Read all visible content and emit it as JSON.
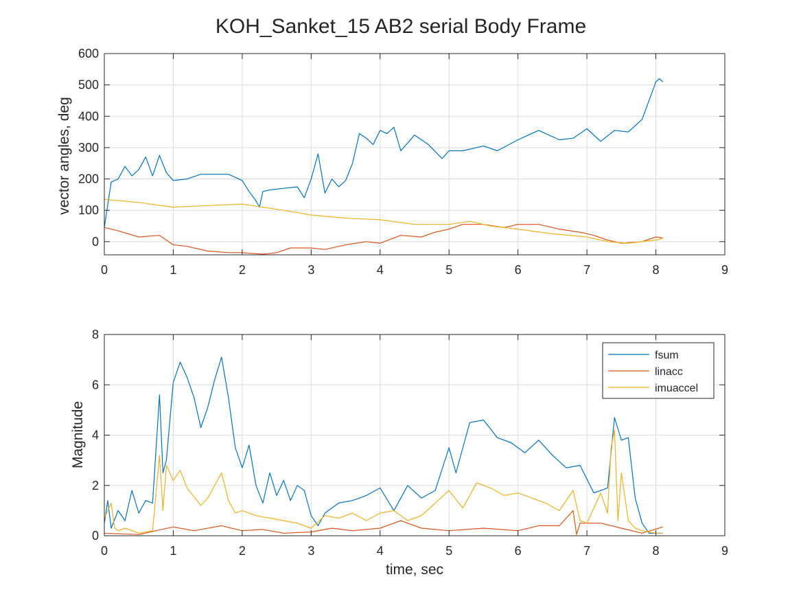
{
  "title": "KOH_Sanket_15    AB2    serial  Body Frame",
  "chart_data": [
    {
      "type": "line",
      "title": "KOH_Sanket_15    AB2    serial  Body Frame",
      "xlabel": "",
      "ylabel": "vector angles, deg",
      "xlim": [
        0,
        9
      ],
      "ylim": [
        -42,
        600
      ],
      "xticks": [
        0,
        1,
        2,
        3,
        4,
        5,
        6,
        7,
        8,
        9
      ],
      "yticks": [
        0,
        100,
        200,
        300,
        400,
        500,
        600
      ],
      "grid": true,
      "series": [
        {
          "color": "#0072BD",
          "x": [
            0,
            0.1,
            0.2,
            0.3,
            0.4,
            0.5,
            0.6,
            0.7,
            0.8,
            0.9,
            1.0,
            1.2,
            1.4,
            1.6,
            1.8,
            2.0,
            2.1,
            2.2,
            2.25,
            2.3,
            2.4,
            2.6,
            2.8,
            2.9,
            3.0,
            3.1,
            3.2,
            3.3,
            3.4,
            3.5,
            3.6,
            3.7,
            3.8,
            3.9,
            4.0,
            4.1,
            4.2,
            4.3,
            4.5,
            4.7,
            4.9,
            5.0,
            5.2,
            5.5,
            5.7,
            6.0,
            6.3,
            6.6,
            6.8,
            7.0,
            7.2,
            7.4,
            7.6,
            7.8,
            8.0,
            8.05,
            8.1
          ],
          "y": [
            45,
            190,
            200,
            240,
            210,
            230,
            270,
            210,
            275,
            220,
            195,
            200,
            215,
            215,
            215,
            195,
            160,
            130,
            110,
            160,
            165,
            170,
            175,
            140,
            200,
            280,
            155,
            200,
            175,
            195,
            250,
            345,
            330,
            310,
            355,
            345,
            365,
            290,
            340,
            310,
            265,
            290,
            290,
            305,
            290,
            325,
            355,
            325,
            330,
            360,
            320,
            355,
            350,
            390,
            510,
            520,
            510
          ]
        },
        {
          "color": "#D95319",
          "x": [
            0,
            0.2,
            0.5,
            0.8,
            1.0,
            1.2,
            1.5,
            1.8,
            2.0,
            2.3,
            2.5,
            2.7,
            3.0,
            3.2,
            3.5,
            3.8,
            4.0,
            4.3,
            4.6,
            4.8,
            5.0,
            5.2,
            5.5,
            5.8,
            6.0,
            6.3,
            6.6,
            6.9,
            7.1,
            7.3,
            7.5,
            7.8,
            8.0,
            8.1
          ],
          "y": [
            45,
            35,
            15,
            20,
            -10,
            -15,
            -30,
            -35,
            -35,
            -40,
            -35,
            -20,
            -20,
            -25,
            -10,
            0,
            -5,
            20,
            15,
            30,
            40,
            55,
            55,
            45,
            55,
            55,
            40,
            30,
            20,
            5,
            -5,
            0,
            15,
            12
          ]
        },
        {
          "color": "#EDB120",
          "x": [
            0,
            0.5,
            1.0,
            1.5,
            2.0,
            2.3,
            2.6,
            3.0,
            3.5,
            4.0,
            4.5,
            5.0,
            5.3,
            5.6,
            6.0,
            6.5,
            7.0,
            7.3,
            7.6,
            8.0,
            8.1
          ],
          "y": [
            135,
            125,
            110,
            115,
            120,
            110,
            100,
            85,
            75,
            70,
            55,
            55,
            65,
            50,
            40,
            25,
            15,
            0,
            -5,
            5,
            10
          ]
        }
      ]
    },
    {
      "type": "line",
      "xlabel": "time, sec",
      "ylabel": "Magnitude",
      "xlim": [
        0,
        9
      ],
      "ylim": [
        0,
        8
      ],
      "xticks": [
        0,
        1,
        2,
        3,
        4,
        5,
        6,
        7,
        8,
        9
      ],
      "yticks": [
        0,
        2,
        4,
        6,
        8
      ],
      "grid": true,
      "legend": "top-right",
      "series": [
        {
          "name": "fsum",
          "color": "#0072BD",
          "x": [
            0,
            0.05,
            0.1,
            0.2,
            0.3,
            0.4,
            0.5,
            0.6,
            0.7,
            0.8,
            0.85,
            0.9,
            1.0,
            1.1,
            1.2,
            1.3,
            1.4,
            1.5,
            1.6,
            1.7,
            1.8,
            1.9,
            2.0,
            2.1,
            2.2,
            2.3,
            2.4,
            2.5,
            2.6,
            2.7,
            2.8,
            2.9,
            3.0,
            3.1,
            3.2,
            3.4,
            3.6,
            3.8,
            4.0,
            4.2,
            4.4,
            4.6,
            4.8,
            5.0,
            5.1,
            5.3,
            5.5,
            5.7,
            5.9,
            6.1,
            6.3,
            6.5,
            6.7,
            6.9,
            7.1,
            7.3,
            7.4,
            7.5,
            7.6,
            7.7,
            7.8,
            7.9,
            8.0,
            8.1
          ],
          "y": [
            0.5,
            1.4,
            0.3,
            1.0,
            0.6,
            1.8,
            0.9,
            1.4,
            1.3,
            5.6,
            2.5,
            3.0,
            6.1,
            6.9,
            6.3,
            5.5,
            4.3,
            5.1,
            6.2,
            7.1,
            5.5,
            3.5,
            2.7,
            3.6,
            2.0,
            1.3,
            2.5,
            1.6,
            2.2,
            1.4,
            2.0,
            1.8,
            0.8,
            0.4,
            0.9,
            1.3,
            1.4,
            1.6,
            1.9,
            1.0,
            2.0,
            1.5,
            1.8,
            3.5,
            2.5,
            4.5,
            4.6,
            3.9,
            3.7,
            3.3,
            3.8,
            3.2,
            2.7,
            2.8,
            1.7,
            1.9,
            4.7,
            3.8,
            3.9,
            1.5,
            0.5,
            0.1,
            0.1,
            0.1
          ]
        },
        {
          "name": "linacc",
          "color": "#D95319",
          "x": [
            0,
            0.5,
            1.0,
            1.3,
            1.7,
            2.0,
            2.3,
            2.6,
            3.0,
            3.3,
            3.6,
            4.0,
            4.3,
            4.6,
            5.0,
            5.5,
            6.0,
            6.3,
            6.6,
            6.8,
            6.85,
            6.9,
            7.2,
            7.5,
            7.8,
            8.1
          ],
          "y": [
            0.1,
            0.05,
            0.35,
            0.2,
            0.4,
            0.2,
            0.25,
            0.1,
            0.15,
            0.3,
            0.2,
            0.3,
            0.6,
            0.3,
            0.2,
            0.3,
            0.2,
            0.4,
            0.4,
            1.0,
            0.05,
            0.5,
            0.5,
            0.3,
            0.1,
            0.35
          ]
        },
        {
          "name": "imuaccel",
          "color": "#EDB120",
          "x": [
            0,
            0.1,
            0.15,
            0.2,
            0.3,
            0.5,
            0.7,
            0.8,
            0.85,
            0.9,
            1.0,
            1.1,
            1.2,
            1.4,
            1.5,
            1.6,
            1.7,
            1.8,
            1.9,
            2.0,
            2.2,
            2.4,
            2.6,
            2.8,
            3.0,
            3.2,
            3.4,
            3.6,
            3.8,
            4.0,
            4.2,
            4.4,
            4.6,
            4.8,
            5.0,
            5.2,
            5.4,
            5.6,
            5.8,
            6.0,
            6.2,
            6.4,
            6.6,
            6.8,
            6.9,
            7.0,
            7.2,
            7.3,
            7.35,
            7.4,
            7.45,
            7.5,
            7.6,
            7.7,
            7.8,
            8.0,
            8.1
          ],
          "y": [
            0.7,
            1.3,
            0.3,
            0.2,
            0.3,
            0.1,
            0.2,
            3.2,
            1.0,
            2.8,
            2.2,
            2.6,
            1.9,
            1.2,
            1.5,
            2.0,
            2.5,
            1.4,
            0.9,
            1.0,
            0.8,
            0.7,
            0.6,
            0.5,
            0.3,
            0.8,
            0.7,
            0.9,
            0.6,
            0.9,
            1.0,
            0.6,
            0.8,
            1.3,
            1.8,
            1.1,
            2.1,
            1.9,
            1.6,
            1.7,
            1.5,
            1.3,
            1.0,
            1.8,
            0.6,
            0.5,
            1.7,
            0.9,
            3.5,
            4.2,
            0.6,
            2.5,
            0.6,
            0.3,
            0.2,
            0.1,
            0.1
          ]
        }
      ]
    }
  ]
}
